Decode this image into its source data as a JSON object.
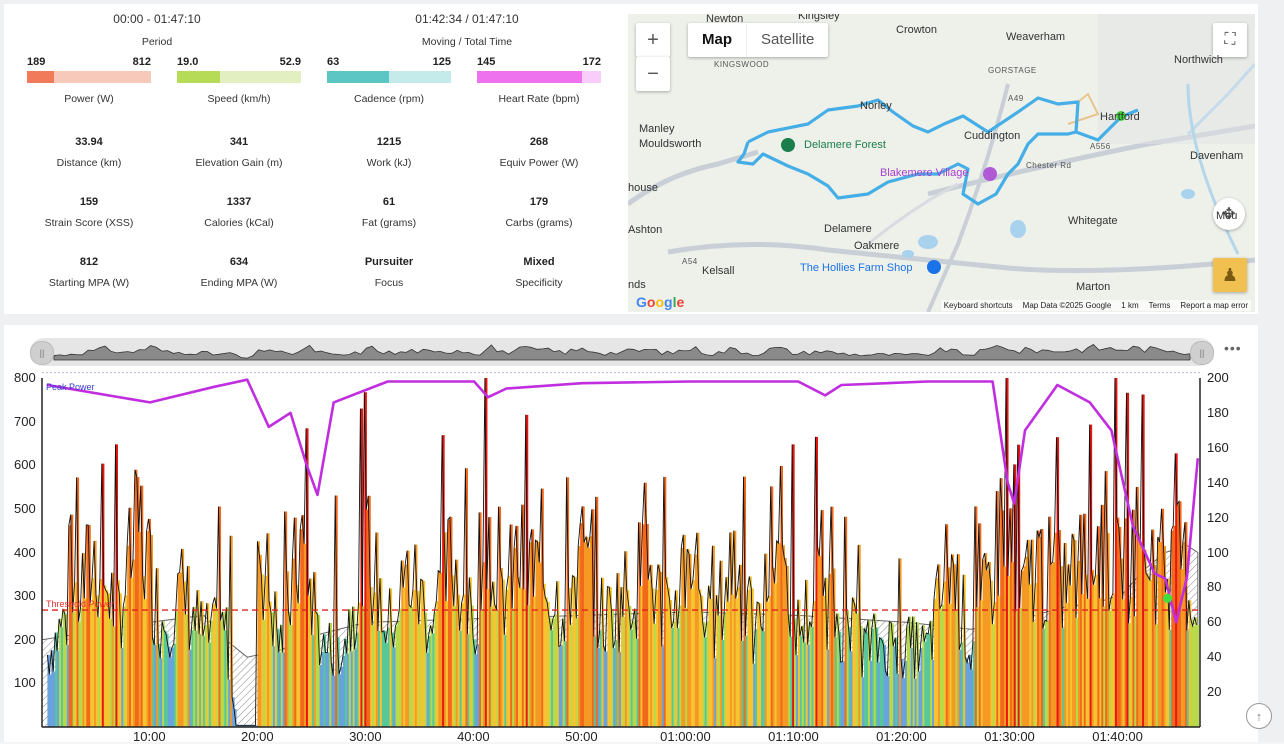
{
  "header": {
    "period_value": "00:00 - 01:47:10",
    "period_label": "Period",
    "moving_value": "01:42:34 / 01:47:10",
    "moving_label": "Moving / Total Time"
  },
  "range_bars": [
    {
      "min": "189",
      "max": "812",
      "label": "Power (W)",
      "fill_fraction": 0.22,
      "color": "#f07a5a",
      "track": "#f7c9bb"
    },
    {
      "min": "19.0",
      "max": "52.9",
      "label": "Speed (km/h)",
      "fill_fraction": 0.35,
      "color": "#b6dc57",
      "track": "#e2f0c1"
    },
    {
      "min": "63",
      "max": "125",
      "label": "Cadence (rpm)",
      "fill_fraction": 0.5,
      "color": "#5cc6c4",
      "track": "#c4ebea"
    },
    {
      "min": "145",
      "max": "172",
      "label": "Heart Rate (bpm)",
      "fill_fraction": 0.85,
      "color": "#ee72ee",
      "track": "#f9cdf9"
    }
  ],
  "metrics": [
    {
      "value": "33.94",
      "label": "Distance (km)"
    },
    {
      "value": "341",
      "label": "Elevation Gain (m)"
    },
    {
      "value": "1215",
      "label": "Work (kJ)"
    },
    {
      "value": "268",
      "label": "Equiv Power (W)"
    },
    {
      "value": "159",
      "label": "Strain Score (XSS)"
    },
    {
      "value": "1337",
      "label": "Calories (kCal)"
    },
    {
      "value": "61",
      "label": "Fat (grams)"
    },
    {
      "value": "179",
      "label": "Carbs (grams)"
    },
    {
      "value": "812",
      "label": "Starting MPA (W)"
    },
    {
      "value": "634",
      "label": "Ending MPA (W)"
    },
    {
      "value": "Pursuiter",
      "label": "Focus"
    },
    {
      "value": "Mixed",
      "label": "Specificity"
    }
  ],
  "map": {
    "tab_map": "Map",
    "tab_satellite": "Satellite",
    "zoom_in": "+",
    "zoom_out": "−",
    "places": [
      "Newton",
      "Kingsley",
      "Crowton",
      "Weaverham",
      "Northwich",
      "KINGSWOOD",
      "GORSTAGE",
      "Norley",
      "Manley",
      "Mouldsworth",
      "Delamere Forest",
      "Cuddington",
      "Hartford",
      "Davenham",
      "Blakemere Village",
      "house",
      "Ashton",
      "Delamere",
      "Oakmere",
      "Whitegate",
      "Kelsall",
      "The Hollies Farm Shop",
      "Marton",
      "nds",
      "Chester Rd",
      "A556",
      "A49",
      "A54",
      "Mou"
    ],
    "footer": [
      "Keyboard shortcuts",
      "Map Data ©2025 Google",
      "1 km",
      "Terms",
      "Report a map error"
    ],
    "logo": "Google"
  },
  "chart": {
    "more_label": "•••",
    "scroll_top": "↑"
  },
  "chart_data": {
    "type": "area",
    "x_tick_labels": [
      "10:00",
      "20:00",
      "30:00",
      "40:00",
      "50:00",
      "01:00:00",
      "01:10:00",
      "01:20:00",
      "01:30:00",
      "01:40:00"
    ],
    "y_left_ticks": [
      "100",
      "200",
      "300",
      "400",
      "500",
      "600",
      "700",
      "800"
    ],
    "y_right_ticks": [
      "20",
      "40",
      "60",
      "80",
      "100",
      "120",
      "140",
      "160",
      "180",
      "200"
    ],
    "ylim_left": [
      0,
      800
    ],
    "ylim_right": [
      0,
      200
    ],
    "annotations": {
      "peak": "Peak Power",
      "threshold": "Threshold Power"
    },
    "threshold_value": 268,
    "peak_value": 812,
    "series": [
      {
        "name": "Power",
        "x_min": [
          0.5,
          5,
          7,
          9,
          11,
          13,
          15,
          17,
          18,
          20,
          22,
          24,
          26,
          28,
          30,
          32,
          34,
          36,
          38,
          40,
          41,
          42,
          44,
          46,
          48,
          50,
          52,
          54,
          56,
          58,
          60,
          62,
          64,
          66,
          68,
          70,
          72,
          74,
          76,
          78,
          80,
          82,
          84,
          86,
          88,
          89.5,
          90.5,
          92,
          94,
          96,
          98,
          100,
          102,
          104,
          105.5,
          107
        ],
        "values": [
          180,
          420,
          280,
          500,
          260,
          330,
          220,
          240,
          10,
          480,
          200,
          460,
          190,
          210,
          450,
          240,
          380,
          260,
          420,
          230,
          620,
          270,
          410,
          380,
          300,
          420,
          260,
          330,
          400,
          250,
          470,
          220,
          430,
          210,
          470,
          240,
          350,
          260,
          200,
          210,
          200,
          190,
          420,
          190,
          390,
          640,
          300,
          410,
          350,
          390,
          470,
          420,
          460,
          380,
          420,
          260
        ]
      },
      {
        "name": "MPA",
        "x_min": [
          0.5,
          10,
          16,
          19,
          21,
          23,
          24.5,
          25.5,
          27,
          32,
          40,
          41.3,
          43,
          50,
          60,
          70,
          72.5,
          74,
          82,
          88,
          89.4,
          90,
          91,
          94,
          97,
          99,
          101,
          103,
          104,
          105,
          106,
          107
        ],
        "values": [
          196,
          186,
          195,
          199,
          172,
          180,
          150,
          133,
          186,
          198,
          198,
          189,
          194,
          197,
          198,
          198,
          190,
          196,
          198,
          198,
          140,
          128,
          170,
          196,
          186,
          170,
          115,
          88,
          85,
          60,
          86,
          154
        ]
      },
      {
        "name": "Elevation",
        "x_min": [
          0,
          10,
          15,
          17,
          19,
          22,
          25,
          30,
          40,
          50,
          60,
          70,
          80,
          86,
          90,
          94,
          98,
          100,
          102,
          104,
          106,
          107
        ],
        "values": [
          0.25,
          0.3,
          0.32,
          0.25,
          0.2,
          0.22,
          0.26,
          0.3,
          0.31,
          0.32,
          0.33,
          0.32,
          0.3,
          0.28,
          0.3,
          0.34,
          0.36,
          0.38,
          0.45,
          0.5,
          0.52,
          0.5
        ]
      }
    ]
  }
}
